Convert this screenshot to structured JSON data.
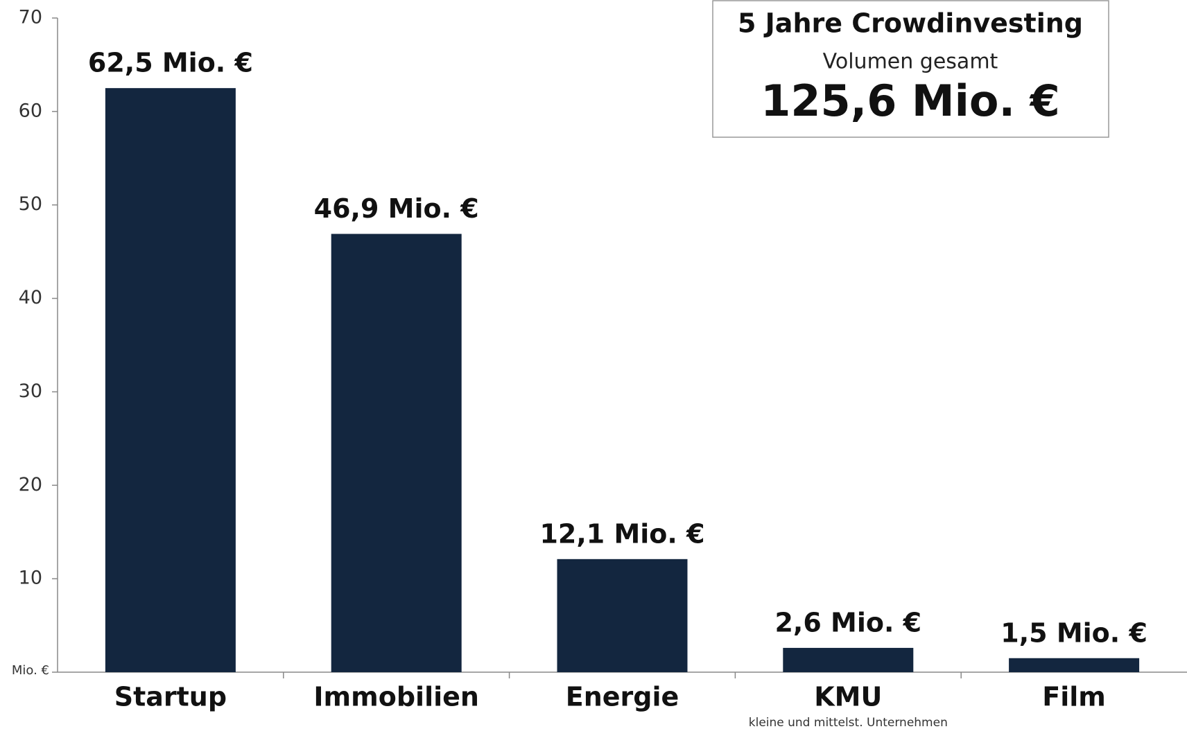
{
  "chart_data": {
    "type": "bar",
    "title": "5 Jahre Crowdinvesting",
    "subtitle": "Volumen gesamt",
    "total_label": "125,6 Mio. €",
    "categories": [
      "Startup",
      "Immobilien",
      "Energie",
      "KMU",
      "Film"
    ],
    "values": [
      62.5,
      46.9,
      12.1,
      2.6,
      1.5
    ],
    "value_labels": [
      "62,5 Mio. €",
      "46,9 Mio. €",
      "12,1 Mio. €",
      "2,6 Mio. €",
      "1,5 Mio. €"
    ],
    "annotations": [
      "kleine und mittelst. Unternehmen"
    ],
    "color": "#13263f",
    "ylim": [
      0,
      70
    ],
    "yticks": [
      {
        "value": 0,
        "label": "Mio. €"
      },
      10,
      20,
      30,
      40,
      50,
      60,
      70
    ],
    "grid": false
  }
}
